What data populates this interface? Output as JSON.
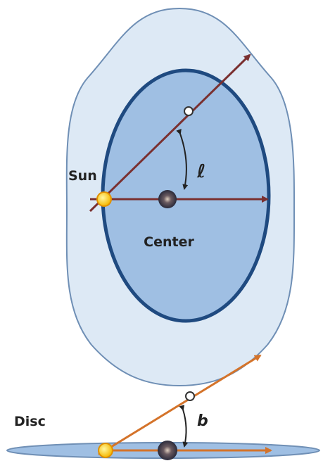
{
  "top_view": {
    "sun_label": "Sun",
    "center_label": "Center",
    "angle_label": "ℓ"
  },
  "side_view": {
    "disc_label": "Disc",
    "angle_label": "b"
  }
}
